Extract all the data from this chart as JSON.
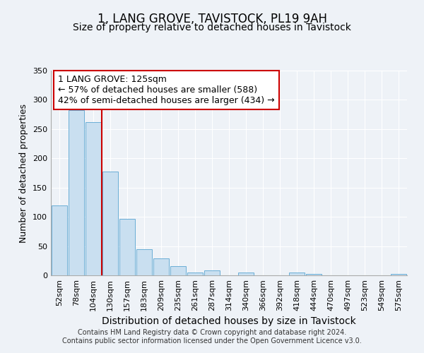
{
  "title": "1, LANG GROVE, TAVISTOCK, PL19 9AH",
  "subtitle": "Size of property relative to detached houses in Tavistock",
  "xlabel": "Distribution of detached houses by size in Tavistock",
  "ylabel": "Number of detached properties",
  "bar_labels": [
    "52sqm",
    "78sqm",
    "104sqm",
    "130sqm",
    "157sqm",
    "183sqm",
    "209sqm",
    "235sqm",
    "261sqm",
    "287sqm",
    "314sqm",
    "340sqm",
    "366sqm",
    "392sqm",
    "418sqm",
    "444sqm",
    "470sqm",
    "497sqm",
    "523sqm",
    "549sqm",
    "575sqm"
  ],
  "bar_values": [
    120,
    282,
    262,
    177,
    97,
    45,
    29,
    16,
    5,
    9,
    0,
    5,
    0,
    0,
    5,
    2,
    0,
    0,
    0,
    0,
    2
  ],
  "bar_color": "#c9dff0",
  "bar_edge_color": "#6aaed6",
  "vline_color": "#cc0000",
  "vline_x_index": 2.5,
  "annotation_text": "1 LANG GROVE: 125sqm\n← 57% of detached houses are smaller (588)\n42% of semi-detached houses are larger (434) →",
  "annotation_box_facecolor": "#ffffff",
  "annotation_box_edgecolor": "#cc0000",
  "ylim": [
    0,
    350
  ],
  "yticks": [
    0,
    50,
    100,
    150,
    200,
    250,
    300,
    350
  ],
  "background_color": "#eef2f7",
  "plot_background_color": "#eef2f7",
  "title_fontsize": 12,
  "subtitle_fontsize": 10,
  "xlabel_fontsize": 10,
  "ylabel_fontsize": 9,
  "tick_fontsize": 8,
  "annotation_fontsize": 9,
  "footer_line1": "Contains HM Land Registry data © Crown copyright and database right 2024.",
  "footer_line2": "Contains public sector information licensed under the Open Government Licence v3.0.",
  "footer_fontsize": 7
}
